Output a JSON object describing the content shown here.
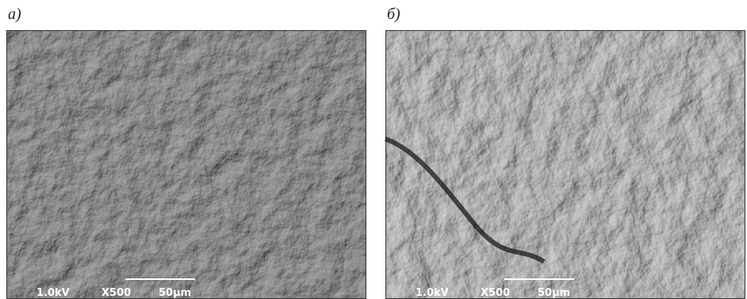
{
  "panels": [
    {
      "label": "а)",
      "voltage": "1.0kV",
      "magnification": "X500",
      "scale": "50µm"
    },
    {
      "label": "б)",
      "voltage": "1.0kV",
      "magnification": "X500",
      "scale": "50µm"
    }
  ]
}
